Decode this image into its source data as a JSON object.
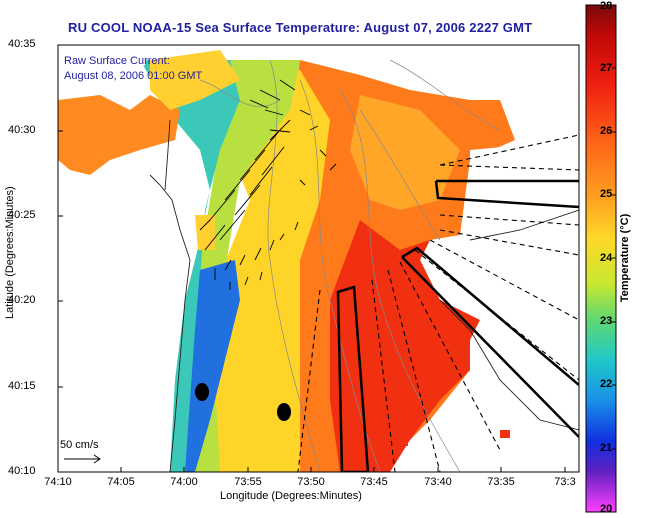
{
  "map": {
    "title": "RU COOL  NOAA-15  Sea Surface Temperature:  August 07, 2006 2227 GMT",
    "legend_line1": "Raw Surface Current:",
    "legend_line2": "August 08, 2006 01:00 GMT",
    "scale_label": "50 cm/s",
    "xlabel": "Longitude (Degrees:Minutes)",
    "ylabel": "Latitude (Degrees:Minutes)",
    "lat_ticks": [
      "40:35",
      "40:30",
      "40:25",
      "40:20",
      "40:15",
      "40:10"
    ],
    "lon_ticks": [
      "74:10",
      "74:05",
      "74:00",
      "73:55",
      "73:50",
      "73:45",
      "73:40",
      "73:35",
      "73:3"
    ]
  },
  "colorbar": {
    "title": "Temperature (°C)",
    "ticks": [
      "28",
      "27",
      "26",
      "25",
      "24",
      "23",
      "22",
      "21",
      "20"
    ],
    "colors": [
      "#7a0a0a",
      "#e01010",
      "#ff5a1a",
      "#ff9a20",
      "#ffd020",
      "#c8e830",
      "#60d870",
      "#20c8c8",
      "#2090e8",
      "#1030e0",
      "#6020c0",
      "#ff40ff"
    ]
  }
}
